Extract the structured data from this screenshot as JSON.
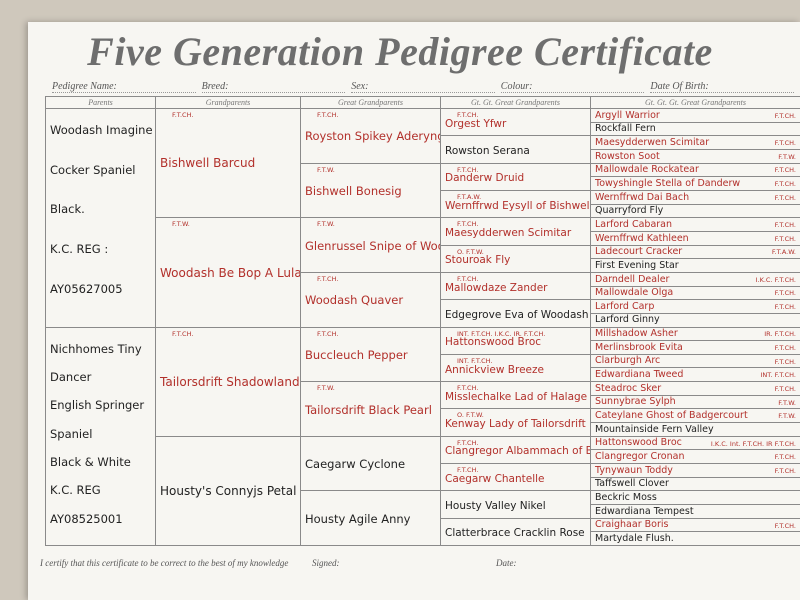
{
  "header": {
    "title": "Five Generation Pedigree Certificate",
    "fields": [
      "Pedigree Name:",
      "Breed:",
      "Sex:",
      "Colour:",
      "Date Of Birth:"
    ]
  },
  "columns": [
    "Parents",
    "Grandparents",
    "Great Grandparents",
    "Gt. Gt. Great Grandparents",
    "Gt. Gt. Gt. Great Grandparents"
  ],
  "parents": [
    {
      "lines": [
        "Woodash Imagine",
        "Cocker Spaniel",
        "Black.",
        "K.C. REG :",
        "AY05627005"
      ]
    },
    {
      "lines": [
        "Nichhomes Tiny",
        "Dancer",
        "English Springer",
        "Spaniel",
        "Black & White",
        "K.C. REG",
        "AY08525001"
      ]
    }
  ],
  "grandparents": [
    {
      "name": "Bishwell Barcud",
      "title": "F.T.CH."
    },
    {
      "name": "Woodash Be Bop A Lula",
      "title": "F.T.W."
    },
    {
      "name": "Tailorsdrift Shadowlands",
      "title": "F.T.CH."
    },
    {
      "name": "Housty's Connyjs Petal"
    }
  ],
  "great_grandparents": [
    {
      "name": "Royston Spikey Aderyng",
      "title": "F.T.CH."
    },
    {
      "name": "Bishwell Bonesig",
      "title": "F.T.W."
    },
    {
      "name": "Glenrussel Snipe of Woodash",
      "title": "F.T.W."
    },
    {
      "name": "Woodash Quaver",
      "title": "F.T.CH."
    },
    {
      "name": "Buccleuch Pepper",
      "title": "F.T.CH."
    },
    {
      "name": "Tailorsdrift Black Pearl",
      "title": "F.T.W."
    },
    {
      "name": "Caegarw Cyclone"
    },
    {
      "name": "Housty Agile Anny"
    }
  ],
  "gen4": [
    {
      "name": "Orgest Yfwr",
      "title": "F.T.CH."
    },
    {
      "name": "Rowston Serana"
    },
    {
      "name": "Danderw Druid",
      "title": "F.T.CH."
    },
    {
      "name": "Wernffrwd Eysyll of Bishwell",
      "title": "F.T.A.W."
    },
    {
      "name": "Maesydderwen Scimitar",
      "title": "F.T.CH."
    },
    {
      "name": "Stouroak Fly",
      "title": "O. F.T.W."
    },
    {
      "name": "Mallowdaze Zander",
      "title": "F.T.CH."
    },
    {
      "name": "Edgegrove Eva of Woodash"
    },
    {
      "name": "Hattonswood Broc",
      "title": "INT. F.T.CH. I.K.C. IR. F.T.CH."
    },
    {
      "name": "Annickview Breeze",
      "title": "INT. F.T.CH."
    },
    {
      "name": "Misslechalke Lad of Halage",
      "title": "F.T.CH."
    },
    {
      "name": "Kenway Lady of Tailorsdrift",
      "title": "O. F.T.W."
    },
    {
      "name": "Clangregor Albammach of Bikabout",
      "title": "F.T.CH."
    },
    {
      "name": "Caegarw Chantelle",
      "title": "F.T.CH."
    },
    {
      "name": "Housty Valley Nikel"
    },
    {
      "name": "Clatterbrace Cracklin Rose"
    }
  ],
  "gen5": [
    {
      "name": "Argyll Warrior",
      "title": "F.T.CH."
    },
    {
      "name": "Rockfall Fern"
    },
    {
      "name": "Maesydderwen Scimitar",
      "title": "F.T.CH."
    },
    {
      "name": "Rowston Soot",
      "title": "F.T.W."
    },
    {
      "name": "Mallowdale Rockatear",
      "title": "F.T.CH."
    },
    {
      "name": "Towyshingle Stella of Danderw",
      "title": "F.T.CH."
    },
    {
      "name": "Wernffrwd Dai Bach",
      "title": "F.T.CH."
    },
    {
      "name": "Quarryford Fly"
    },
    {
      "name": "Larford Cabaran",
      "title": "F.T.CH."
    },
    {
      "name": "Wernffrwd Kathleen",
      "title": "F.T.CH."
    },
    {
      "name": "Ladecourt Cracker",
      "title": "F.T.A.W."
    },
    {
      "name": "First Evening Star"
    },
    {
      "name": "Darndell Dealer",
      "title": "I.K.C. F.T.CH."
    },
    {
      "name": "Mallowdale Olga",
      "title": "F.T.CH."
    },
    {
      "name": "Larford Carp",
      "title": "F.T.CH."
    },
    {
      "name": "Larford Ginny"
    },
    {
      "name": "Millshadow Asher",
      "title": "IR. F.T.CH."
    },
    {
      "name": "Merlinsbrook Evita",
      "title": "F.T.CH."
    },
    {
      "name": "Clarburgh Arc",
      "title": "F.T.CH."
    },
    {
      "name": "Edwardiana Tweed",
      "title": "INT. F.T.CH."
    },
    {
      "name": "Steadroc Sker",
      "title": "F.T.CH."
    },
    {
      "name": "Sunnybrae Sylph",
      "title": "F.T.W."
    },
    {
      "name": "Cateylane Ghost of Badgercourt",
      "title": "F.T.W."
    },
    {
      "name": "Mountainside Fern Valley"
    },
    {
      "name": "Hattonswood Broc",
      "title": "I.K.C. Int. F.T.CH. IR F.T.CH."
    },
    {
      "name": "Clangregor Cronan",
      "title": "F.T.CH."
    },
    {
      "name": "Tynywaun Toddy",
      "title": "F.T.CH."
    },
    {
      "name": "Taffswell Clover"
    },
    {
      "name": "Beckric Moss"
    },
    {
      "name": "Edwardiana Tempest"
    },
    {
      "name": "Craighaar Boris",
      "title": "F.T.CH."
    },
    {
      "name": "Martydale Flush."
    }
  ],
  "footer": {
    "certify": "I certify that this certificate to be correct to the best of my knowledge",
    "signed": "Signed:",
    "date": "Date:"
  }
}
